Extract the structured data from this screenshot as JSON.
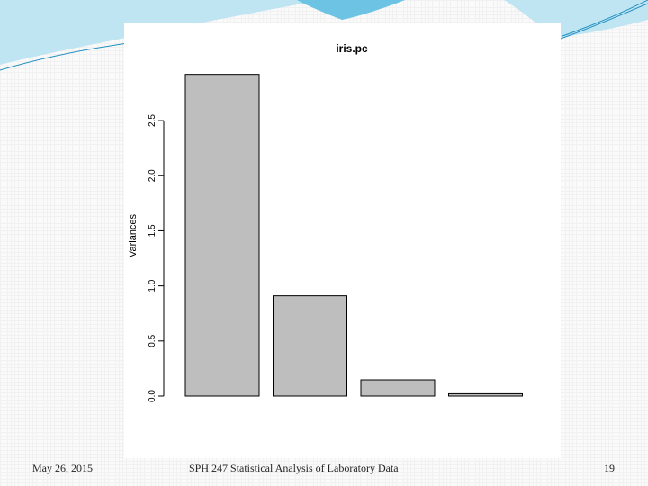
{
  "slide": {
    "footer_date": "May 26, 2015",
    "footer_title": "SPH 247 Statistical Analysis of Laboratory Data",
    "page_number": "19"
  },
  "colors": {
    "bar_fill": "#bebebe",
    "bar_stroke": "#000000",
    "swoosh_light": "#bfe4f2",
    "swoosh_mid": "#6cc3e3",
    "swoosh_dark": "#1f8fc0"
  },
  "chart_data": {
    "type": "bar",
    "title": "iris.pc",
    "xlabel": "",
    "ylabel": "Variances",
    "categories": [
      "",
      "",
      "",
      ""
    ],
    "values": [
      2.92,
      0.91,
      0.147,
      0.021
    ],
    "ylim": [
      0,
      2.95
    ],
    "yticks": [
      0.0,
      0.5,
      1.0,
      1.5,
      2.0,
      2.5
    ],
    "ytick_labels": [
      "0.0",
      "0.5",
      "1.0",
      "1.5",
      "2.0",
      "2.5"
    ],
    "grid": false,
    "legend": "none"
  }
}
